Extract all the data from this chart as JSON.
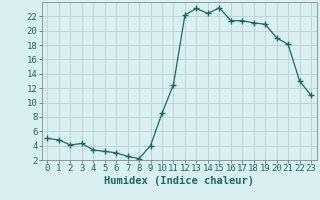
{
  "xlabel": "Humidex (Indice chaleur)",
  "x": [
    0,
    1,
    2,
    3,
    4,
    5,
    6,
    7,
    8,
    9,
    10,
    11,
    12,
    13,
    14,
    15,
    16,
    17,
    18,
    19,
    20,
    21,
    22,
    23
  ],
  "y": [
    5,
    4.8,
    4.1,
    4.3,
    3.4,
    3.2,
    3.0,
    2.5,
    2.2,
    4.0,
    8.5,
    12.5,
    22.2,
    23.1,
    22.4,
    23.2,
    21.4,
    21.4,
    21.1,
    20.9,
    19.0,
    18.1,
    13.0,
    11.0
  ],
  "line_color": "#1a6b5e",
  "marker": "+",
  "marker_size": 4,
  "bg_color": "#d8f0f0",
  "grid_color": "#b8d0d0",
  "ylim": [
    2,
    24
  ],
  "xlim": [
    -0.5,
    23.5
  ],
  "yticks": [
    2,
    4,
    6,
    8,
    10,
    12,
    14,
    16,
    18,
    20,
    22
  ],
  "xticks": [
    0,
    1,
    2,
    3,
    4,
    5,
    6,
    7,
    8,
    9,
    10,
    11,
    12,
    13,
    14,
    15,
    16,
    17,
    18,
    19,
    20,
    21,
    22,
    23
  ],
  "tick_fontsize": 6.5,
  "xlabel_fontsize": 7.5
}
